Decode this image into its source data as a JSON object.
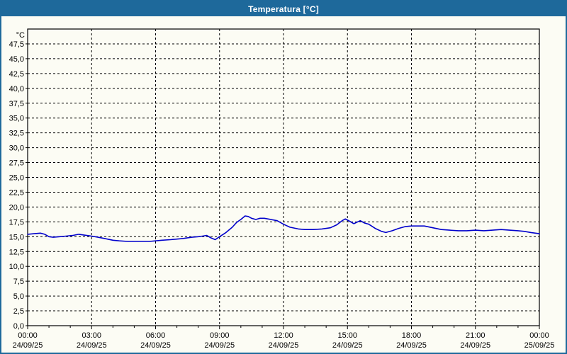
{
  "window": {
    "title": "Temperatura [°C]",
    "title_bar_color": "#1E699B",
    "border_color": "#1E699B",
    "background_color": "#FCFCF4"
  },
  "chart_data": {
    "type": "line",
    "title": "Temperatura [°C]",
    "unit_label": "°C",
    "grid": "dashed",
    "line_color": "#0000CC",
    "y_axis": {
      "min": 0,
      "max": 50,
      "grid_step": 2.5,
      "tick_labels": [
        "47,5",
        "45,0",
        "42,5",
        "40,0",
        "37,5",
        "35,0",
        "32,5",
        "30,0",
        "27,5",
        "25,0",
        "22,5",
        "20,0",
        "17,5",
        "15,0",
        "12,5",
        "10,0",
        "7,5",
        "5,0",
        "2,5",
        "0,0"
      ]
    },
    "x_axis": {
      "range_hours": [
        0,
        24
      ],
      "major_tick_hours": 3,
      "minor_tick_hours": 1,
      "labels": [
        {
          "time": "00:00",
          "date": "24/09/25"
        },
        {
          "time": "03:00",
          "date": "24/09/25"
        },
        {
          "time": "06:00",
          "date": "24/09/25"
        },
        {
          "time": "09:00",
          "date": "24/09/25"
        },
        {
          "time": "12:00",
          "date": "24/09/25"
        },
        {
          "time": "15:00",
          "date": "24/09/25"
        },
        {
          "time": "18:00",
          "date": "24/09/25"
        },
        {
          "time": "21:00",
          "date": "24/09/25"
        },
        {
          "time": "00:00",
          "date": "25/09/25"
        }
      ]
    },
    "series": [
      {
        "name": "Temperatura",
        "unit": "°C",
        "points": [
          [
            0.0,
            15.4
          ],
          [
            0.3,
            15.5
          ],
          [
            0.6,
            15.6
          ],
          [
            0.8,
            15.4
          ],
          [
            1.0,
            15.0
          ],
          [
            1.2,
            14.9
          ],
          [
            1.5,
            15.0
          ],
          [
            1.8,
            15.1
          ],
          [
            2.1,
            15.2
          ],
          [
            2.4,
            15.4
          ],
          [
            2.6,
            15.3
          ],
          [
            3.0,
            15.1
          ],
          [
            3.3,
            14.9
          ],
          [
            3.6,
            14.7
          ],
          [
            4.0,
            14.4
          ],
          [
            4.3,
            14.3
          ],
          [
            4.7,
            14.2
          ],
          [
            5.0,
            14.2
          ],
          [
            5.4,
            14.2
          ],
          [
            5.7,
            14.2
          ],
          [
            6.0,
            14.3
          ],
          [
            6.3,
            14.4
          ],
          [
            6.7,
            14.5
          ],
          [
            7.0,
            14.6
          ],
          [
            7.3,
            14.7
          ],
          [
            7.7,
            14.9
          ],
          [
            8.0,
            15.0
          ],
          [
            8.2,
            15.1
          ],
          [
            8.4,
            15.2
          ],
          [
            8.6,
            14.8
          ],
          [
            8.8,
            14.5
          ],
          [
            9.0,
            15.0
          ],
          [
            9.3,
            15.7
          ],
          [
            9.6,
            16.6
          ],
          [
            9.8,
            17.4
          ],
          [
            10.0,
            17.9
          ],
          [
            10.2,
            18.5
          ],
          [
            10.35,
            18.4
          ],
          [
            10.5,
            18.1
          ],
          [
            10.7,
            17.9
          ],
          [
            10.9,
            18.1
          ],
          [
            11.1,
            18.1
          ],
          [
            11.4,
            17.9
          ],
          [
            11.7,
            17.7
          ],
          [
            12.0,
            17.1
          ],
          [
            12.3,
            16.6
          ],
          [
            12.7,
            16.3
          ],
          [
            13.0,
            16.2
          ],
          [
            13.4,
            16.2
          ],
          [
            13.8,
            16.3
          ],
          [
            14.2,
            16.5
          ],
          [
            14.5,
            17.0
          ],
          [
            14.75,
            17.7
          ],
          [
            14.9,
            18.0
          ],
          [
            15.1,
            17.6
          ],
          [
            15.3,
            17.2
          ],
          [
            15.6,
            17.7
          ],
          [
            15.8,
            17.3
          ],
          [
            16.0,
            17.1
          ],
          [
            16.3,
            16.4
          ],
          [
            16.6,
            15.9
          ],
          [
            16.8,
            15.7
          ],
          [
            17.1,
            16.0
          ],
          [
            17.4,
            16.4
          ],
          [
            17.7,
            16.7
          ],
          [
            18.0,
            16.8
          ],
          [
            18.3,
            16.8
          ],
          [
            18.6,
            16.8
          ],
          [
            19.0,
            16.5
          ],
          [
            19.4,
            16.2
          ],
          [
            19.8,
            16.1
          ],
          [
            20.2,
            16.0
          ],
          [
            20.6,
            16.0
          ],
          [
            21.0,
            16.1
          ],
          [
            21.4,
            16.0
          ],
          [
            21.8,
            16.1
          ],
          [
            22.2,
            16.2
          ],
          [
            22.6,
            16.1
          ],
          [
            23.0,
            16.0
          ],
          [
            23.3,
            15.9
          ],
          [
            23.6,
            15.7
          ],
          [
            24.0,
            15.5
          ]
        ]
      }
    ]
  }
}
